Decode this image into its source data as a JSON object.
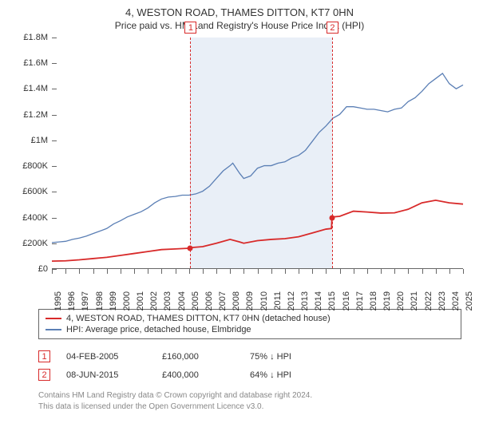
{
  "title": {
    "main": "4, WESTON ROAD, THAMES DITTON, KT7 0HN",
    "sub": "Price paid vs. HM Land Registry's House Price Index (HPI)"
  },
  "chart": {
    "type": "line",
    "background_color": "#ffffff",
    "shade_color": "rgba(200,215,235,0.4)",
    "axis_color": "#666666",
    "text_color": "#333333",
    "y": {
      "min": 0,
      "max": 1800000,
      "ticks": [
        {
          "v": 0,
          "label": "£0"
        },
        {
          "v": 200000,
          "label": "£200K"
        },
        {
          "v": 400000,
          "label": "£400K"
        },
        {
          "v": 600000,
          "label": "£600K"
        },
        {
          "v": 800000,
          "label": "£800K"
        },
        {
          "v": 1000000,
          "label": "£1M"
        },
        {
          "v": 1200000,
          "label": "£1.2M"
        },
        {
          "v": 1400000,
          "label": "£1.4M"
        },
        {
          "v": 1600000,
          "label": "£1.6M"
        },
        {
          "v": 1800000,
          "label": "£1.8M"
        }
      ]
    },
    "x": {
      "min": 1995,
      "max": 2025,
      "ticks": [
        1995,
        1996,
        1997,
        1998,
        1999,
        2000,
        2001,
        2002,
        2003,
        2004,
        2005,
        2006,
        2007,
        2008,
        2009,
        2010,
        2011,
        2012,
        2013,
        2014,
        2015,
        2016,
        2017,
        2018,
        2019,
        2020,
        2021,
        2022,
        2023,
        2024,
        2025
      ]
    },
    "shade_range": [
      2005.1,
      2015.44
    ],
    "markers": [
      {
        "n": "1",
        "x": 2005.1,
        "color": "#d82a2a"
      },
      {
        "n": "2",
        "x": 2015.44,
        "color": "#d82a2a"
      }
    ],
    "series": [
      {
        "name": "hpi",
        "color": "#5b7fb5",
        "width": 1.3,
        "points": [
          [
            1995,
            200000
          ],
          [
            1995.5,
            205000
          ],
          [
            1996,
            210000
          ],
          [
            1996.5,
            225000
          ],
          [
            1997,
            235000
          ],
          [
            1997.5,
            250000
          ],
          [
            1998,
            270000
          ],
          [
            1998.5,
            290000
          ],
          [
            1999,
            310000
          ],
          [
            1999.5,
            345000
          ],
          [
            2000,
            370000
          ],
          [
            2000.5,
            400000
          ],
          [
            2001,
            420000
          ],
          [
            2001.5,
            440000
          ],
          [
            2002,
            470000
          ],
          [
            2002.5,
            510000
          ],
          [
            2003,
            540000
          ],
          [
            2003.5,
            555000
          ],
          [
            2004,
            560000
          ],
          [
            2004.5,
            570000
          ],
          [
            2005,
            570000
          ],
          [
            2005.5,
            580000
          ],
          [
            2006,
            600000
          ],
          [
            2006.5,
            640000
          ],
          [
            2007,
            700000
          ],
          [
            2007.5,
            760000
          ],
          [
            2008,
            800000
          ],
          [
            2008.2,
            820000
          ],
          [
            2008.7,
            740000
          ],
          [
            2009,
            700000
          ],
          [
            2009.5,
            720000
          ],
          [
            2010,
            780000
          ],
          [
            2010.5,
            800000
          ],
          [
            2011,
            800000
          ],
          [
            2011.5,
            820000
          ],
          [
            2012,
            830000
          ],
          [
            2012.5,
            860000
          ],
          [
            2013,
            880000
          ],
          [
            2013.5,
            920000
          ],
          [
            2014,
            990000
          ],
          [
            2014.5,
            1060000
          ],
          [
            2015,
            1110000
          ],
          [
            2015.5,
            1170000
          ],
          [
            2016,
            1200000
          ],
          [
            2016.5,
            1260000
          ],
          [
            2017,
            1260000
          ],
          [
            2017.5,
            1250000
          ],
          [
            2018,
            1240000
          ],
          [
            2018.5,
            1240000
          ],
          [
            2019,
            1230000
          ],
          [
            2019.5,
            1220000
          ],
          [
            2020,
            1240000
          ],
          [
            2020.5,
            1250000
          ],
          [
            2021,
            1300000
          ],
          [
            2021.5,
            1330000
          ],
          [
            2022,
            1380000
          ],
          [
            2022.5,
            1440000
          ],
          [
            2023,
            1480000
          ],
          [
            2023.5,
            1520000
          ],
          [
            2024,
            1440000
          ],
          [
            2024.5,
            1400000
          ],
          [
            2025,
            1430000
          ]
        ]
      },
      {
        "name": "price-paid",
        "color": "#d82a2a",
        "width": 1.8,
        "points": [
          [
            1995,
            55000
          ],
          [
            1996,
            58000
          ],
          [
            1997,
            65000
          ],
          [
            1998,
            75000
          ],
          [
            1999,
            85000
          ],
          [
            2000,
            100000
          ],
          [
            2001,
            115000
          ],
          [
            2002,
            130000
          ],
          [
            2003,
            145000
          ],
          [
            2004,
            150000
          ],
          [
            2005,
            156000
          ],
          [
            2005.1,
            160000
          ],
          [
            2006,
            168000
          ],
          [
            2007,
            195000
          ],
          [
            2008,
            225000
          ],
          [
            2008.7,
            205000
          ],
          [
            2009,
            195000
          ],
          [
            2010,
            215000
          ],
          [
            2011,
            225000
          ],
          [
            2012,
            230000
          ],
          [
            2013,
            245000
          ],
          [
            2014,
            275000
          ],
          [
            2015,
            305000
          ],
          [
            2015.4,
            310000
          ],
          [
            2015.44,
            400000
          ],
          [
            2016,
            405000
          ],
          [
            2017,
            445000
          ],
          [
            2018,
            438000
          ],
          [
            2019,
            430000
          ],
          [
            2020,
            432000
          ],
          [
            2021,
            460000
          ],
          [
            2022,
            510000
          ],
          [
            2023,
            530000
          ],
          [
            2024,
            510000
          ],
          [
            2025,
            500000
          ]
        ]
      }
    ],
    "sale_points": [
      {
        "x": 2005.1,
        "y": 160000,
        "color": "#d82a2a"
      },
      {
        "x": 2015.44,
        "y": 400000,
        "color": "#d82a2a"
      }
    ]
  },
  "legend": [
    {
      "color": "#d82a2a",
      "label": "4, WESTON ROAD, THAMES DITTON, KT7 0HN (detached house)"
    },
    {
      "color": "#5b7fb5",
      "label": "HPI: Average price, detached house, Elmbridge"
    }
  ],
  "sales": [
    {
      "n": "1",
      "color": "#d82a2a",
      "date": "04-FEB-2005",
      "price": "£160,000",
      "pct": "75% ↓ HPI"
    },
    {
      "n": "2",
      "color": "#d82a2a",
      "date": "08-JUN-2015",
      "price": "£400,000",
      "pct": "64% ↓ HPI"
    }
  ],
  "footer": {
    "line1": "Contains HM Land Registry data © Crown copyright and database right 2024.",
    "line2": "This data is licensed under the Open Government Licence v3.0."
  }
}
